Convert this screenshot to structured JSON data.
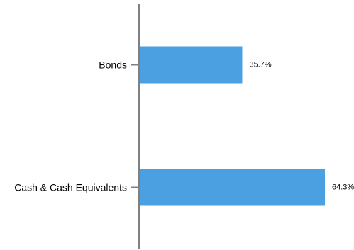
{
  "colors": {
    "bar": "#4aa0e0",
    "axis": "#808080",
    "text": "#000000",
    "background": "#ffffff"
  },
  "chart_data": {
    "type": "bar",
    "orientation": "horizontal",
    "categories": [
      "Bonds",
      "Cash & Cash Equivalents"
    ],
    "values": [
      35.7,
      64.3
    ],
    "value_labels": [
      "35.7%",
      "64.3%"
    ],
    "value_unit": "%",
    "xlim": [
      0,
      64.3
    ],
    "grid": false,
    "legend": "none"
  }
}
